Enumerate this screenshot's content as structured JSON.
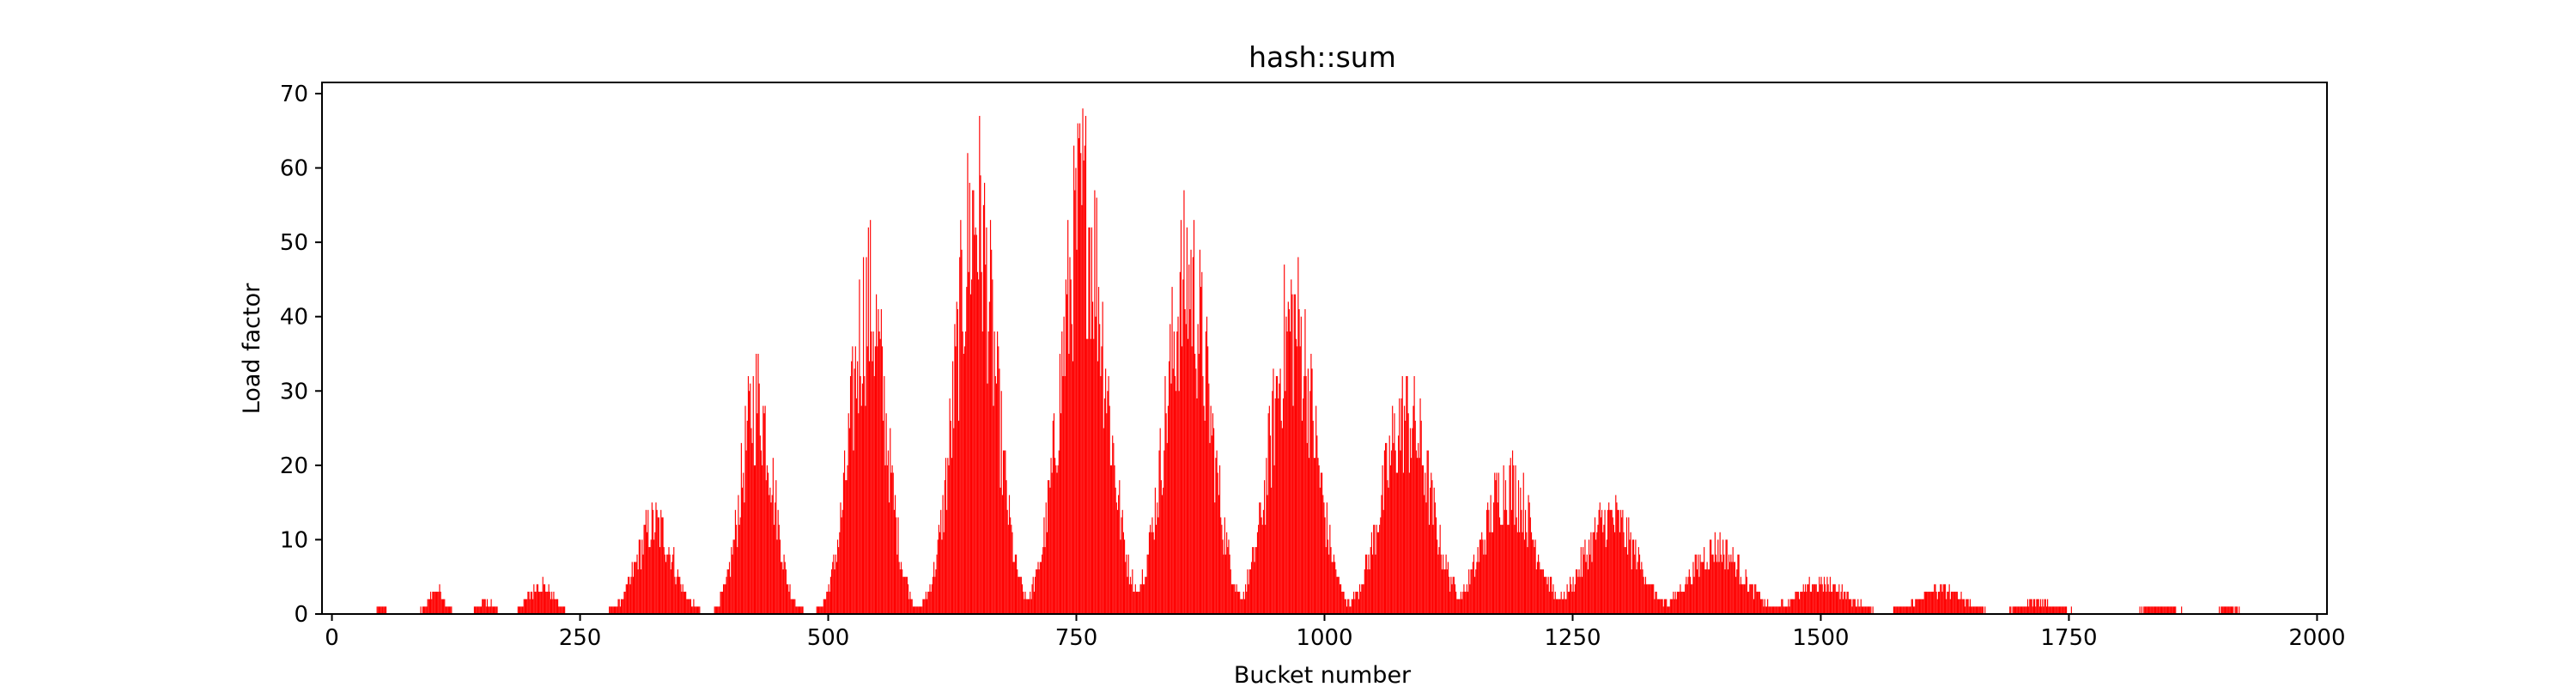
{
  "chart_data": {
    "type": "bar",
    "title": "hash::sum",
    "xlabel": "Bucket number",
    "ylabel": "Load factor",
    "xlim": [
      -10,
      2010
    ],
    "ylim": [
      0,
      71.5
    ],
    "xticks": [
      "0",
      "250",
      "500",
      "750",
      "1000",
      "1250",
      "1500",
      "1750",
      "2000"
    ],
    "yticks": [
      "0",
      "10",
      "20",
      "30",
      "40",
      "50",
      "60",
      "70"
    ],
    "grid": false,
    "legend": "none",
    "bar_color": "#ff0000",
    "series": [
      {
        "values_note_free_peaks": true,
        "clusters": [
          {
            "center": 50,
            "peak": 1,
            "width": 5
          },
          {
            "center": 105,
            "peak": 4,
            "width": 8
          },
          {
            "center": 155,
            "peak": 2,
            "width": 8
          },
          {
            "center": 210,
            "peak": 5,
            "width": 12
          },
          {
            "center": 325,
            "peak": 15,
            "width": 18
          },
          {
            "center": 428,
            "peak": 36,
            "width": 16
          },
          {
            "center": 540,
            "peak": 52,
            "width": 18
          },
          {
            "center": 648,
            "peak": 67,
            "width": 20
          },
          {
            "center": 757,
            "peak": 68,
            "width": 22
          },
          {
            "center": 862,
            "peak": 56,
            "width": 22
          },
          {
            "center": 968,
            "peak": 49,
            "width": 22
          },
          {
            "center": 1082,
            "peak": 33,
            "width": 24
          },
          {
            "center": 1185,
            "peak": 22,
            "width": 24
          },
          {
            "center": 1288,
            "peak": 16,
            "width": 26
          },
          {
            "center": 1395,
            "peak": 11,
            "width": 26
          },
          {
            "center": 1500,
            "peak": 5,
            "width": 26
          },
          {
            "center": 1620,
            "peak": 4,
            "width": 24
          },
          {
            "center": 1720,
            "peak": 2,
            "width": 20
          },
          {
            "center": 1840,
            "peak": 1,
            "width": 20
          },
          {
            "center": 1910,
            "peak": 1,
            "width": 10
          }
        ]
      }
    ]
  }
}
